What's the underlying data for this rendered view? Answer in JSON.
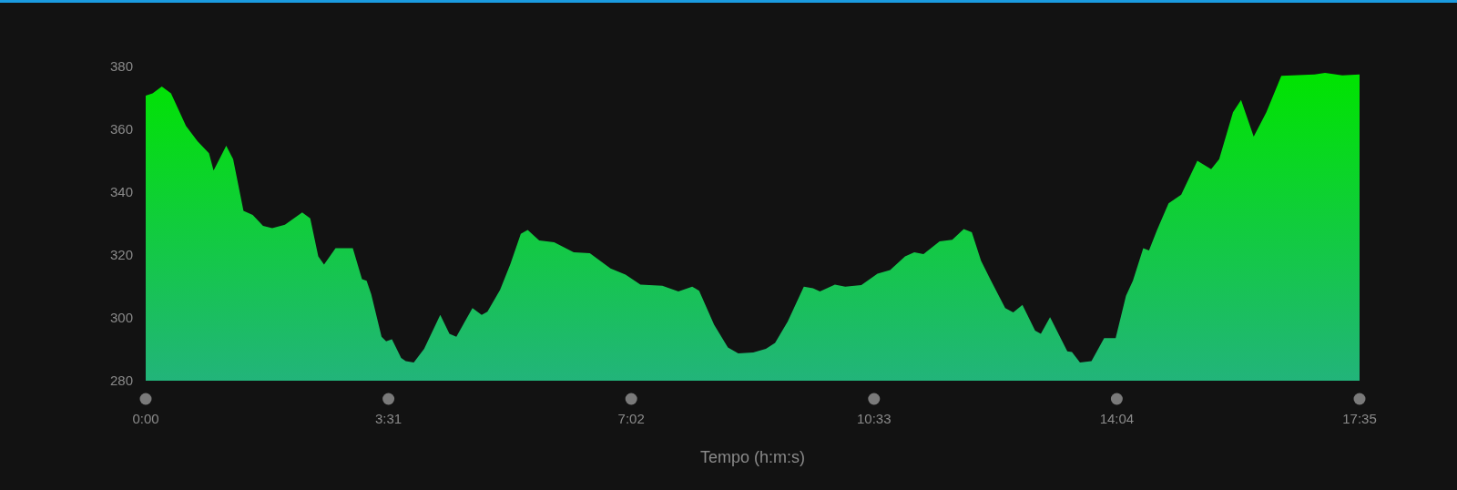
{
  "chart_data": {
    "type": "area",
    "xlabel": "Tempo (h:m:s)",
    "x": [
      0,
      6,
      14,
      22,
      35,
      45,
      55,
      59,
      70,
      76,
      85,
      93,
      102,
      110,
      121,
      136,
      143,
      150,
      155,
      165,
      180,
      188,
      192,
      196,
      205,
      209,
      214,
      222,
      226,
      233,
      242,
      256,
      264,
      270,
      284,
      292,
      297,
      308,
      317,
      326,
      332,
      342,
      355,
      372,
      386,
      404,
      417,
      430,
      449,
      463,
      475,
      481,
      494,
      506,
      515,
      528,
      539,
      547,
      558,
      572,
      580,
      586,
      599,
      608,
      622,
      636,
      647,
      660,
      668,
      676,
      690,
      701,
      711,
      718,
      726,
      734,
      747,
      754,
      762,
      773,
      778,
      786,
      801,
      805,
      812,
      822,
      833,
      843,
      852,
      858,
      867,
      872,
      879,
      889,
      900,
      914,
      926,
      933,
      945,
      952,
      963,
      974,
      987,
      1016,
      1025,
      1040,
      1055
    ],
    "series": [
      {
        "color": "#00e400",
        "values": [
          370.6,
          371.3,
          373.5,
          371.3,
          361,
          356.1,
          352.3,
          346.8,
          354.7,
          350.4,
          334,
          332.7,
          329.2,
          328.5,
          329.6,
          333.5,
          331.6,
          319.5,
          316.9,
          322.1,
          322.1,
          312.3,
          311.8,
          307.5,
          294,
          292.5,
          293.2,
          287.2,
          286.2,
          285.8,
          290.1,
          300.9,
          294.9,
          294,
          303.1,
          300.9,
          301.9,
          308.9,
          317.1,
          326.7,
          327.9,
          324.6,
          324,
          320.8,
          320.5,
          315.7,
          313.7,
          310.5,
          310.2,
          308.4,
          309.9,
          308.6,
          297.8,
          290.6,
          288.7,
          289,
          290.1,
          292,
          298.8,
          309.9,
          309.4,
          308.4,
          310.5,
          309.9,
          310.4,
          314,
          315.2,
          319.5,
          320.8,
          320.2,
          324.3,
          324.8,
          328.2,
          327.2,
          318.1,
          312.3,
          303.1,
          301.7,
          304.1,
          295.9,
          294.9,
          300.2,
          289.3,
          289.1,
          285.8,
          286.2,
          293.5,
          293.5,
          307,
          311.8,
          322.1,
          321.4,
          327.9,
          336.4,
          339.1,
          349.9,
          347.2,
          350.4,
          365.3,
          369.2,
          357.6,
          365.3,
          376.9,
          377.3,
          377.8,
          377,
          377.3
        ]
      }
    ],
    "xlim": [
      0,
      1055
    ],
    "xticks": [
      {
        "value": 0,
        "label": "0:00"
      },
      {
        "value": 211,
        "label": "3:31"
      },
      {
        "value": 422,
        "label": "7:02"
      },
      {
        "value": 633,
        "label": "10:33"
      },
      {
        "value": 844,
        "label": "14:04"
      },
      {
        "value": 1055,
        "label": "17:35"
      }
    ],
    "ylim": [
      280,
      380
    ],
    "yticks": [
      280,
      300,
      320,
      340,
      360,
      380
    ]
  }
}
